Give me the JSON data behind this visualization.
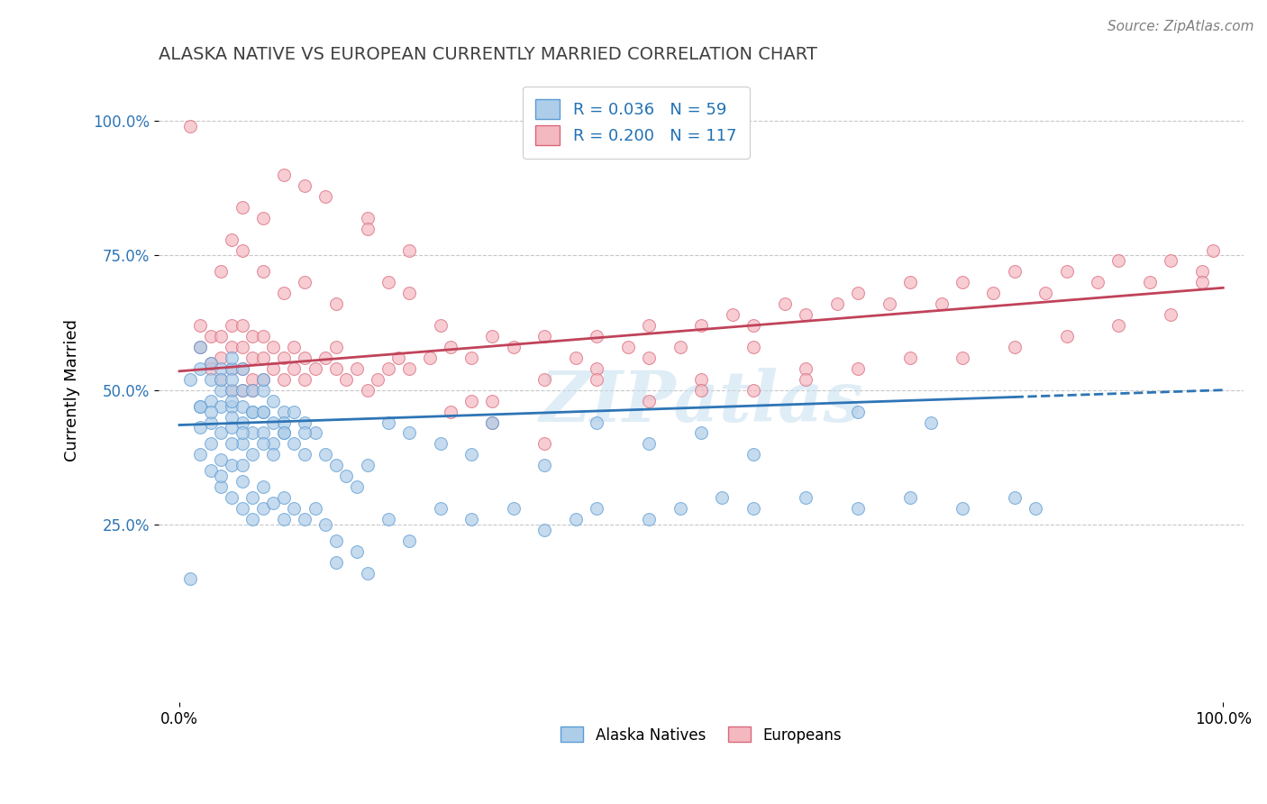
{
  "title": "ALASKA NATIVE VS EUROPEAN CURRENTLY MARRIED CORRELATION CHART",
  "source": "Source: ZipAtlas.com",
  "ylabel": "Currently Married",
  "xlim": [
    -0.02,
    1.02
  ],
  "ylim": [
    -0.08,
    1.08
  ],
  "plot_xlim": [
    0.0,
    1.0
  ],
  "xtick_positions": [
    0.0,
    1.0
  ],
  "xtick_labels": [
    "0.0%",
    "100.0%"
  ],
  "ytick_positions": [
    0.25,
    0.5,
    0.75,
    1.0
  ],
  "ytick_labels": [
    "25.0%",
    "50.0%",
    "75.0%",
    "100.0%"
  ],
  "watermark": "ZIPatlas",
  "alaska_color": "#aecde8",
  "alaska_edge": "#5b9bd5",
  "european_color": "#f4b8c1",
  "european_edge": "#d9687a",
  "alaska_R": 0.036,
  "alaska_N": 59,
  "european_R": 0.2,
  "european_N": 117,
  "alaska_line_color": "#2e75b6",
  "european_line_color": "#c0435a",
  "alaska_line_intercept": 0.435,
  "alaska_line_slope": 0.065,
  "european_line_intercept": 0.535,
  "european_line_slope": 0.155,
  "legend_text_color": "#2171b5",
  "background_color": "#ffffff",
  "grid_color": "#c8c8c8",
  "alaska_scatter_x": [
    0.01,
    0.02,
    0.02,
    0.02,
    0.03,
    0.03,
    0.03,
    0.03,
    0.04,
    0.04,
    0.04,
    0.04,
    0.04,
    0.05,
    0.05,
    0.05,
    0.05,
    0.05,
    0.05,
    0.06,
    0.06,
    0.06,
    0.06,
    0.06,
    0.07,
    0.07,
    0.07,
    0.07,
    0.08,
    0.08,
    0.08,
    0.08,
    0.09,
    0.09,
    0.09,
    0.1,
    0.1,
    0.11,
    0.11,
    0.12,
    0.12,
    0.13,
    0.14,
    0.15,
    0.16,
    0.17,
    0.18,
    0.2,
    0.22,
    0.25,
    0.28,
    0.3,
    0.35,
    0.4,
    0.45,
    0.5,
    0.55,
    0.65,
    0.72
  ],
  "alaska_scatter_y": [
    0.52,
    0.54,
    0.58,
    0.47,
    0.52,
    0.55,
    0.48,
    0.44,
    0.5,
    0.54,
    0.47,
    0.52,
    0.42,
    0.5,
    0.54,
    0.47,
    0.43,
    0.52,
    0.56,
    0.5,
    0.54,
    0.47,
    0.44,
    0.4,
    0.5,
    0.46,
    0.42,
    0.38,
    0.5,
    0.46,
    0.42,
    0.52,
    0.48,
    0.44,
    0.4,
    0.46,
    0.42,
    0.46,
    0.4,
    0.44,
    0.38,
    0.42,
    0.38,
    0.36,
    0.34,
    0.32,
    0.36,
    0.44,
    0.42,
    0.4,
    0.38,
    0.44,
    0.36,
    0.44,
    0.4,
    0.42,
    0.38,
    0.46,
    0.44
  ],
  "alaska_scatter_x2": [
    0.01,
    0.02,
    0.02,
    0.02,
    0.03,
    0.03,
    0.04,
    0.04,
    0.05,
    0.05,
    0.05,
    0.06,
    0.06,
    0.07,
    0.07,
    0.08,
    0.08,
    0.09,
    0.1,
    0.1,
    0.11,
    0.12,
    0.13,
    0.14,
    0.15,
    0.17,
    0.2,
    0.22,
    0.25,
    0.28,
    0.32,
    0.35,
    0.38,
    0.4,
    0.45,
    0.48,
    0.52,
    0.55,
    0.6,
    0.65,
    0.7,
    0.75,
    0.8,
    0.82,
    0.15,
    0.18,
    0.09,
    0.06,
    0.04,
    0.03,
    0.05,
    0.07,
    0.08,
    0.1,
    0.12,
    0.05,
    0.06,
    0.08,
    0.1
  ],
  "alaska_scatter_y2": [
    0.15,
    0.47,
    0.43,
    0.38,
    0.35,
    0.4,
    0.32,
    0.37,
    0.3,
    0.36,
    0.45,
    0.28,
    0.33,
    0.26,
    0.3,
    0.28,
    0.32,
    0.29,
    0.26,
    0.3,
    0.28,
    0.26,
    0.28,
    0.25,
    0.22,
    0.2,
    0.26,
    0.22,
    0.28,
    0.26,
    0.28,
    0.24,
    0.26,
    0.28,
    0.26,
    0.28,
    0.3,
    0.28,
    0.3,
    0.28,
    0.3,
    0.28,
    0.3,
    0.28,
    0.18,
    0.16,
    0.38,
    0.36,
    0.34,
    0.46,
    0.48,
    0.46,
    0.46,
    0.44,
    0.42,
    0.4,
    0.42,
    0.4,
    0.42
  ],
  "european_scatter_x": [
    0.01,
    0.02,
    0.02,
    0.03,
    0.03,
    0.03,
    0.04,
    0.04,
    0.04,
    0.05,
    0.05,
    0.05,
    0.05,
    0.06,
    0.06,
    0.06,
    0.06,
    0.07,
    0.07,
    0.07,
    0.07,
    0.08,
    0.08,
    0.08,
    0.09,
    0.09,
    0.1,
    0.1,
    0.11,
    0.11,
    0.12,
    0.12,
    0.13,
    0.14,
    0.15,
    0.15,
    0.16,
    0.17,
    0.18,
    0.19,
    0.2,
    0.21,
    0.22,
    0.24,
    0.26,
    0.28,
    0.3,
    0.32,
    0.35,
    0.38,
    0.4,
    0.43,
    0.45,
    0.48,
    0.5,
    0.53,
    0.55,
    0.58,
    0.6,
    0.63,
    0.65,
    0.68,
    0.7,
    0.73,
    0.75,
    0.78,
    0.8,
    0.83,
    0.85,
    0.88,
    0.9,
    0.93,
    0.95,
    0.98,
    0.99,
    0.3,
    0.35,
    0.4,
    0.45,
    0.5,
    0.55,
    0.6,
    0.26,
    0.28,
    0.22,
    0.18,
    0.14,
    0.12,
    0.1,
    0.08,
    0.06,
    0.05,
    0.04,
    0.06,
    0.08,
    0.1,
    0.12,
    0.15,
    0.18,
    0.2,
    0.22,
    0.25,
    0.3,
    0.35,
    0.4,
    0.45,
    0.5,
    0.55,
    0.6,
    0.65,
    0.7,
    0.75,
    0.8,
    0.85,
    0.9,
    0.95,
    0.98
  ],
  "european_scatter_y": [
    0.99,
    0.58,
    0.62,
    0.55,
    0.6,
    0.54,
    0.52,
    0.56,
    0.6,
    0.5,
    0.54,
    0.58,
    0.62,
    0.5,
    0.54,
    0.58,
    0.62,
    0.52,
    0.56,
    0.6,
    0.5,
    0.52,
    0.56,
    0.6,
    0.54,
    0.58,
    0.52,
    0.56,
    0.54,
    0.58,
    0.52,
    0.56,
    0.54,
    0.56,
    0.54,
    0.58,
    0.52,
    0.54,
    0.5,
    0.52,
    0.54,
    0.56,
    0.54,
    0.56,
    0.58,
    0.56,
    0.6,
    0.58,
    0.6,
    0.56,
    0.6,
    0.58,
    0.62,
    0.58,
    0.62,
    0.64,
    0.62,
    0.66,
    0.64,
    0.66,
    0.68,
    0.66,
    0.7,
    0.66,
    0.7,
    0.68,
    0.72,
    0.68,
    0.72,
    0.7,
    0.74,
    0.7,
    0.74,
    0.72,
    0.76,
    0.48,
    0.52,
    0.54,
    0.56,
    0.52,
    0.58,
    0.54,
    0.46,
    0.48,
    0.76,
    0.82,
    0.86,
    0.88,
    0.9,
    0.82,
    0.84,
    0.78,
    0.72,
    0.76,
    0.72,
    0.68,
    0.7,
    0.66,
    0.8,
    0.7,
    0.68,
    0.62,
    0.44,
    0.4,
    0.52,
    0.48,
    0.5,
    0.5,
    0.52,
    0.54,
    0.56,
    0.56,
    0.58,
    0.6,
    0.62,
    0.64,
    0.7
  ]
}
